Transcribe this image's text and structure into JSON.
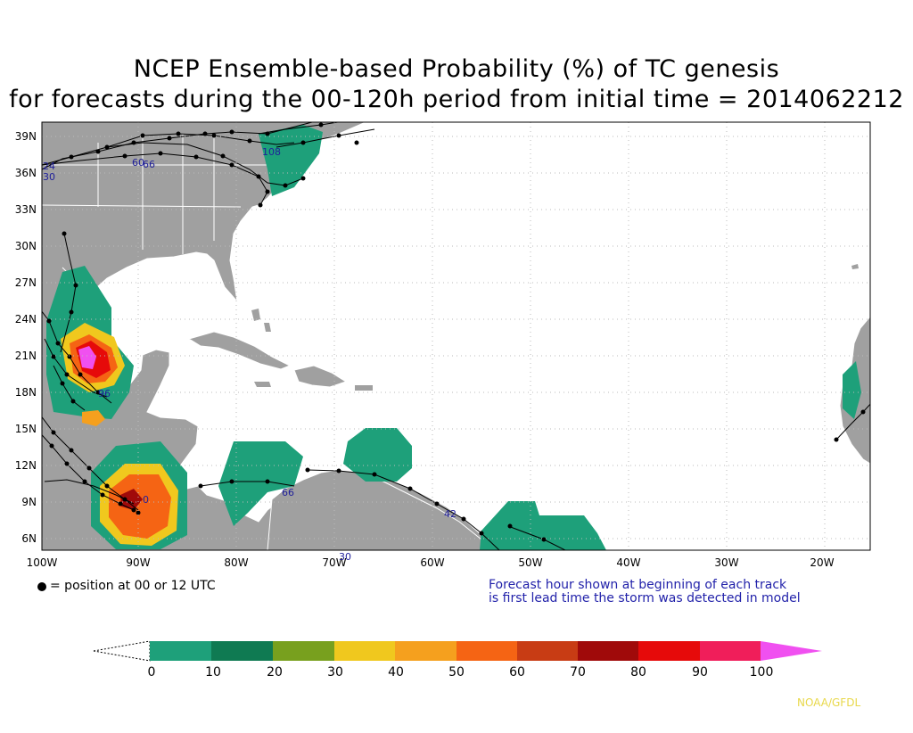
{
  "title": {
    "line1": "NCEP Ensemble-based Probability (%) of TC genesis",
    "line2": "for forecasts during the 00-120h period from initial time = 2014062212"
  },
  "map": {
    "lat_labels": [
      "39N",
      "36N",
      "33N",
      "30N",
      "27N",
      "24N",
      "21N",
      "18N",
      "15N",
      "12N",
      "9N",
      "6N"
    ],
    "lon_labels": [
      "100W",
      "90W",
      "80W",
      "70W",
      "60W",
      "50W",
      "40W",
      "30W",
      "20W"
    ],
    "colors": {
      "ocean": "#ffffff",
      "land": "#a0a0a0",
      "track": "#000000",
      "hour_label": "#1f1f9a"
    },
    "track_hour_labels": [
      "24",
      "30",
      "60",
      "66",
      "108",
      "42",
      "66",
      "96",
      "0",
      "30"
    ]
  },
  "notes": {
    "position_legend": "= position at 00 or 12 UTC",
    "forecast_line1": "Forecast hour shown at beginning of each track",
    "forecast_line2": "is first lead time the storm was detected in model"
  },
  "colorbar": {
    "labels": [
      "0",
      "10",
      "20",
      "30",
      "40",
      "50",
      "60",
      "70",
      "80",
      "90",
      "100"
    ],
    "colors": [
      "#1ea07a",
      "#0f7a52",
      "#78a01e",
      "#f0c81e",
      "#f5a01e",
      "#f56414",
      "#c83c14",
      "#a00a0a",
      "#e60a0a",
      "#f01e5a",
      "#f050f0"
    ]
  },
  "credit": "NOAA/GFDL"
}
